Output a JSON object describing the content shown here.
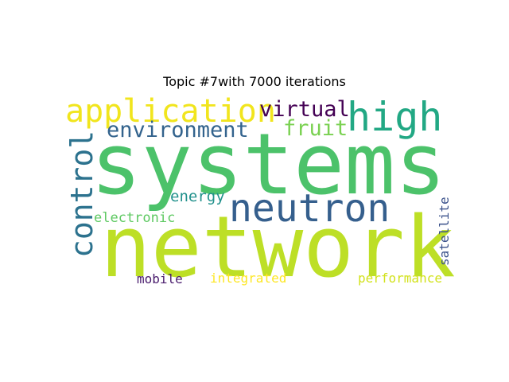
{
  "title": "Topic #7with 7000 iterations",
  "words": [
    {
      "key": "systems",
      "text": "systems",
      "color": "#4cc26a"
    },
    {
      "key": "network",
      "text": "network",
      "color": "#bddf26"
    },
    {
      "key": "neutron",
      "text": "neutron",
      "color": "#355f8d"
    },
    {
      "key": "high",
      "text": "high",
      "color": "#22a884"
    },
    {
      "key": "application",
      "text": "application",
      "color": "#f1e51d"
    },
    {
      "key": "environment",
      "text": "environment",
      "color": "#33638d"
    },
    {
      "key": "control",
      "text": "control",
      "color": "#2c728e"
    },
    {
      "key": "virtual",
      "text": "virtual",
      "color": "#440154"
    },
    {
      "key": "fruit",
      "text": "fruit",
      "color": "#7ad151"
    },
    {
      "key": "energy",
      "text": "energy",
      "color": "#21918c"
    },
    {
      "key": "electronic",
      "text": "electronic",
      "color": "#5ec962"
    },
    {
      "key": "satellite",
      "text": "satellite",
      "color": "#3b528b"
    },
    {
      "key": "mobile",
      "text": "mobile",
      "color": "#481a6c"
    },
    {
      "key": "integrated",
      "text": "integrated",
      "color": "#fde725"
    },
    {
      "key": "performance",
      "text": "performance",
      "color": "#d2e21b"
    }
  ]
}
